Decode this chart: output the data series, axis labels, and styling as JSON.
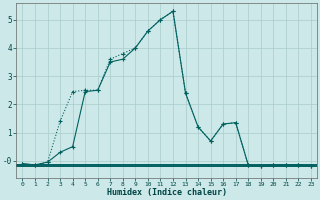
{
  "xlabel": "Humidex (Indice chaleur)",
  "bg_color": "#cce8e8",
  "grid_color": "#aacccc",
  "line_color": "#006060",
  "x": [
    0,
    1,
    2,
    3,
    4,
    5,
    6,
    7,
    8,
    9,
    10,
    11,
    12,
    13,
    14,
    15,
    16,
    17,
    18,
    19,
    20,
    21,
    22,
    23
  ],
  "y_solid": [
    -0.1,
    -0.15,
    -0.05,
    0.3,
    0.5,
    2.45,
    2.5,
    3.5,
    3.6,
    4.0,
    4.6,
    5.0,
    5.3,
    2.4,
    1.2,
    0.7,
    1.3,
    1.35,
    -0.15,
    -0.2,
    -0.15,
    -0.15,
    -0.15,
    -0.2
  ],
  "y_dotted": [
    -0.1,
    -0.15,
    -0.05,
    1.4,
    2.45,
    2.5,
    2.5,
    3.6,
    3.8,
    4.0,
    4.6,
    5.0,
    5.3,
    2.4,
    1.2,
    0.7,
    1.3,
    1.35,
    -0.15,
    -0.2,
    -0.15,
    -0.15,
    -0.15,
    -0.2
  ],
  "y_hline1": -0.1,
  "y_hline2": -0.15,
  "y_hline3": -0.18,
  "ylim": [
    -0.6,
    5.6
  ],
  "xlim": [
    -0.5,
    23.5
  ],
  "yticks": [
    0,
    1,
    2,
    3,
    4,
    5
  ],
  "ytick_labels": [
    "-0",
    "1",
    "2",
    "3",
    "4",
    "5"
  ],
  "xticks": [
    0,
    1,
    2,
    3,
    4,
    5,
    6,
    7,
    8,
    9,
    10,
    11,
    12,
    13,
    14,
    15,
    16,
    17,
    18,
    19,
    20,
    21,
    22,
    23
  ]
}
